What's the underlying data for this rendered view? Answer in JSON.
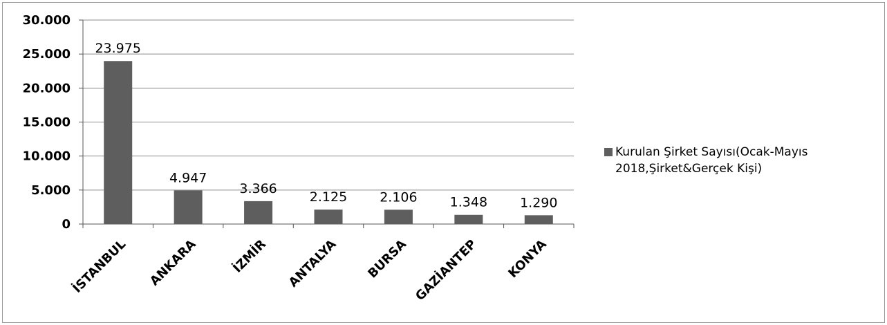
{
  "chart_data": {
    "type": "bar",
    "categories": [
      "İSTANBUL",
      "ANKARA",
      "İZMİR",
      "ANTALYA",
      "BURSA",
      "GAZİANTEP",
      "KONYA"
    ],
    "series": [
      {
        "name": "Kurulan Şirket Sayısı(Ocak-Mayıs 2018,Şirket&Gerçek Kişi)",
        "values": [
          23975,
          4947,
          3366,
          2125,
          2106,
          1348,
          1290
        ],
        "data_labels": [
          "23.975",
          "4.947",
          "3.366",
          "2.125",
          "2.106",
          "1.348",
          "1.290"
        ]
      }
    ],
    "y_ticks": [
      "0",
      "5.000",
      "10.000",
      "15.000",
      "20.000",
      "25.000",
      "30.000"
    ],
    "ylim": [
      0,
      30000
    ],
    "grid": true,
    "legend_position": "right",
    "bar_color": "#5e5e5e",
    "gridline_color": "#8c8c8c"
  }
}
